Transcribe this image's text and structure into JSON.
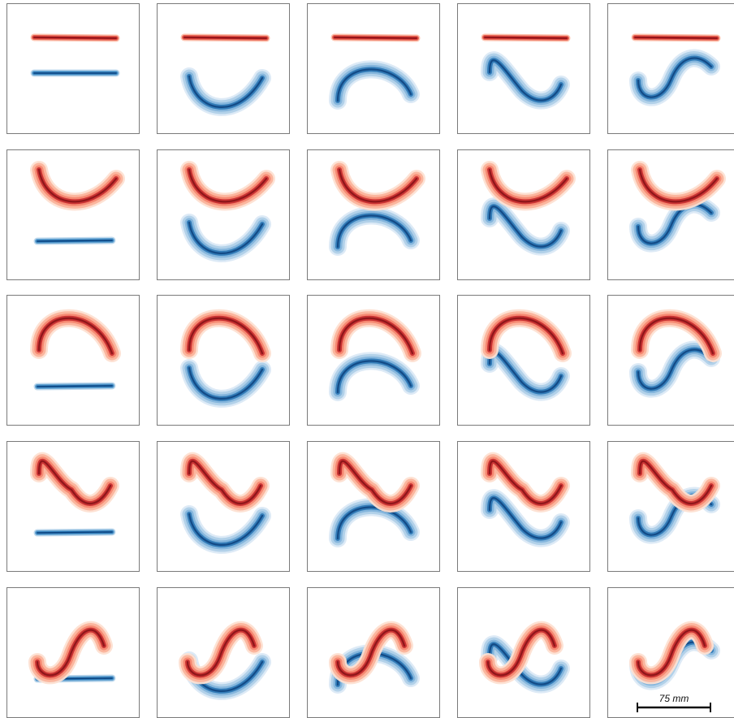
{
  "scale_bar": {
    "label": "75 mm"
  },
  "colors": {
    "red": [
      "#fde0d2",
      "#fbb39b",
      "#f4816a",
      "#e14c3c",
      "#c11f24",
      "#7f0f14"
    ],
    "blue": [
      "#dbe9f6",
      "#afd0e8",
      "#7cb2da",
      "#4a92c8",
      "#1f6fb0",
      "#0b3f7a"
    ],
    "frame": "#7a7a7a"
  },
  "panels": [
    {
      "row": 1,
      "col": 1,
      "top": "line-high",
      "bottom": "line-mid"
    },
    {
      "row": 1,
      "col": 2,
      "top": "line-high",
      "bottom": "cup"
    },
    {
      "row": 1,
      "col": 3,
      "top": "line-high",
      "bottom": "cap"
    },
    {
      "row": 1,
      "col": 4,
      "top": "line-high",
      "bottom": "wave-tilde"
    },
    {
      "row": 1,
      "col": 5,
      "top": "line-high",
      "bottom": "wave-s"
    },
    {
      "row": 2,
      "col": 1,
      "top": "cup",
      "bottom": "line-low"
    },
    {
      "row": 2,
      "col": 2,
      "top": "cup",
      "bottom": "cup"
    },
    {
      "row": 2,
      "col": 3,
      "top": "cup",
      "bottom": "cap"
    },
    {
      "row": 2,
      "col": 4,
      "top": "cup",
      "bottom": "wave-tilde"
    },
    {
      "row": 2,
      "col": 5,
      "top": "cup",
      "bottom": "wave-s"
    },
    {
      "row": 3,
      "col": 1,
      "top": "cap",
      "bottom": "line-low"
    },
    {
      "row": 3,
      "col": 2,
      "top": "cap",
      "bottom": "cup"
    },
    {
      "row": 3,
      "col": 3,
      "top": "cap",
      "bottom": "cap"
    },
    {
      "row": 3,
      "col": 4,
      "top": "cap",
      "bottom": "wave-tilde"
    },
    {
      "row": 3,
      "col": 5,
      "top": "cap",
      "bottom": "wave-s"
    },
    {
      "row": 4,
      "col": 1,
      "top": "wave-tilde",
      "bottom": "line-low"
    },
    {
      "row": 4,
      "col": 2,
      "top": "wave-tilde",
      "bottom": "cup"
    },
    {
      "row": 4,
      "col": 3,
      "top": "wave-tilde",
      "bottom": "cap"
    },
    {
      "row": 4,
      "col": 4,
      "top": "wave-tilde",
      "bottom": "wave-tilde"
    },
    {
      "row": 4,
      "col": 5,
      "top": "wave-tilde",
      "bottom": "wave-s"
    },
    {
      "row": 5,
      "col": 1,
      "top": "wave-s",
      "bottom": "line-low"
    },
    {
      "row": 5,
      "col": 2,
      "top": "wave-s",
      "bottom": "cup"
    },
    {
      "row": 5,
      "col": 3,
      "top": "wave-s",
      "bottom": "cap"
    },
    {
      "row": 5,
      "col": 4,
      "top": "wave-s",
      "bottom": "wave-tilde"
    },
    {
      "row": 5,
      "col": 5,
      "top": "wave-s",
      "bottom": "wave-s"
    }
  ]
}
